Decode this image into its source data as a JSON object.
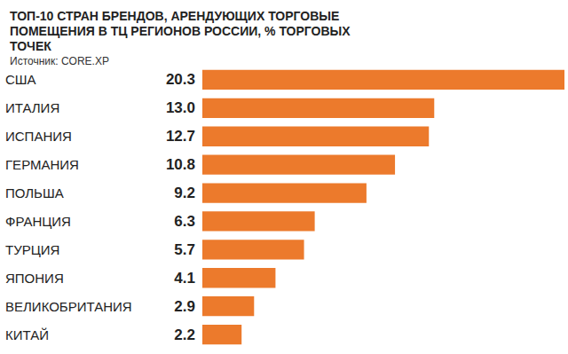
{
  "chart_data": {
    "type": "bar",
    "orientation": "horizontal",
    "title": "ТОП-10 СТРАН БРЕНДОВ, АРЕНДУЮЩИХ ТОРГОВЫЕ ПОМЕЩЕНИЯ В ТЦ РЕГИОНОВ РОССИИ, % ТОРГОВЫХ ТОЧЕК",
    "subtitle": "Источник: CORE.XP",
    "categories": [
      "США",
      "ИТАЛИЯ",
      "ИСПАНИЯ",
      "ГЕРМАНИЯ",
      "ПОЛЬША",
      "ФРАНЦИЯ",
      "ТУРЦИЯ",
      "ЯПОНИЯ",
      "ВЕЛИКОБРИТАНИЯ",
      "КИТАЙ"
    ],
    "values": [
      20.3,
      13.0,
      12.7,
      10.8,
      9.2,
      6.3,
      5.7,
      4.1,
      2.9,
      2.2
    ],
    "value_labels": [
      "20.3",
      "13.0",
      "12.7",
      "10.8",
      "9.2",
      "6.3",
      "5.7",
      "4.1",
      "2.9",
      "2.2"
    ],
    "color": "#ec7a2c",
    "xlim": [
      0,
      20.3
    ],
    "data_labels": true,
    "tick_labels": "y",
    "grid": false
  }
}
